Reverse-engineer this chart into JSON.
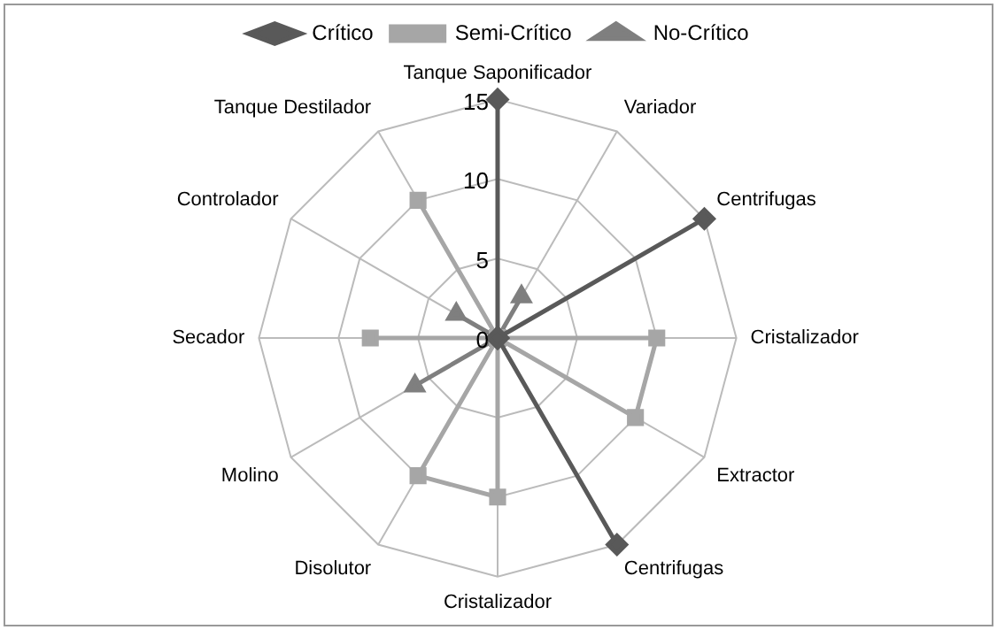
{
  "chart_data": {
    "type": "radar",
    "categories": [
      "Tanque Saponificador",
      "Variador",
      "Centrifugas",
      "Cristalizador",
      "Extractor",
      "Centrifugas",
      "Cristalizador",
      "Disolutor",
      "Molino",
      "Secador",
      "Controlador",
      "Tanque Destilador"
    ],
    "series": [
      {
        "name": "Crítico",
        "color": "#595959",
        "marker": "diamond",
        "values": [
          15,
          0,
          15,
          0,
          0,
          15,
          0,
          0,
          0,
          0,
          0,
          0
        ]
      },
      {
        "name": "Semi-Crítico",
        "color": "#a6a6a6",
        "marker": "square",
        "values": [
          0,
          0,
          0,
          10,
          10,
          0,
          10,
          10,
          0,
          8,
          0,
          10
        ]
      },
      {
        "name": "No-Crítico",
        "color": "#7f7f7f",
        "marker": "triangle",
        "values": [
          0,
          3,
          0,
          0,
          0,
          0,
          0,
          0,
          6,
          0,
          3,
          0
        ]
      }
    ],
    "ylim": [
      0,
      15
    ],
    "yticks": [
      0,
      5,
      10,
      15
    ],
    "grid": true,
    "legend": "top"
  }
}
